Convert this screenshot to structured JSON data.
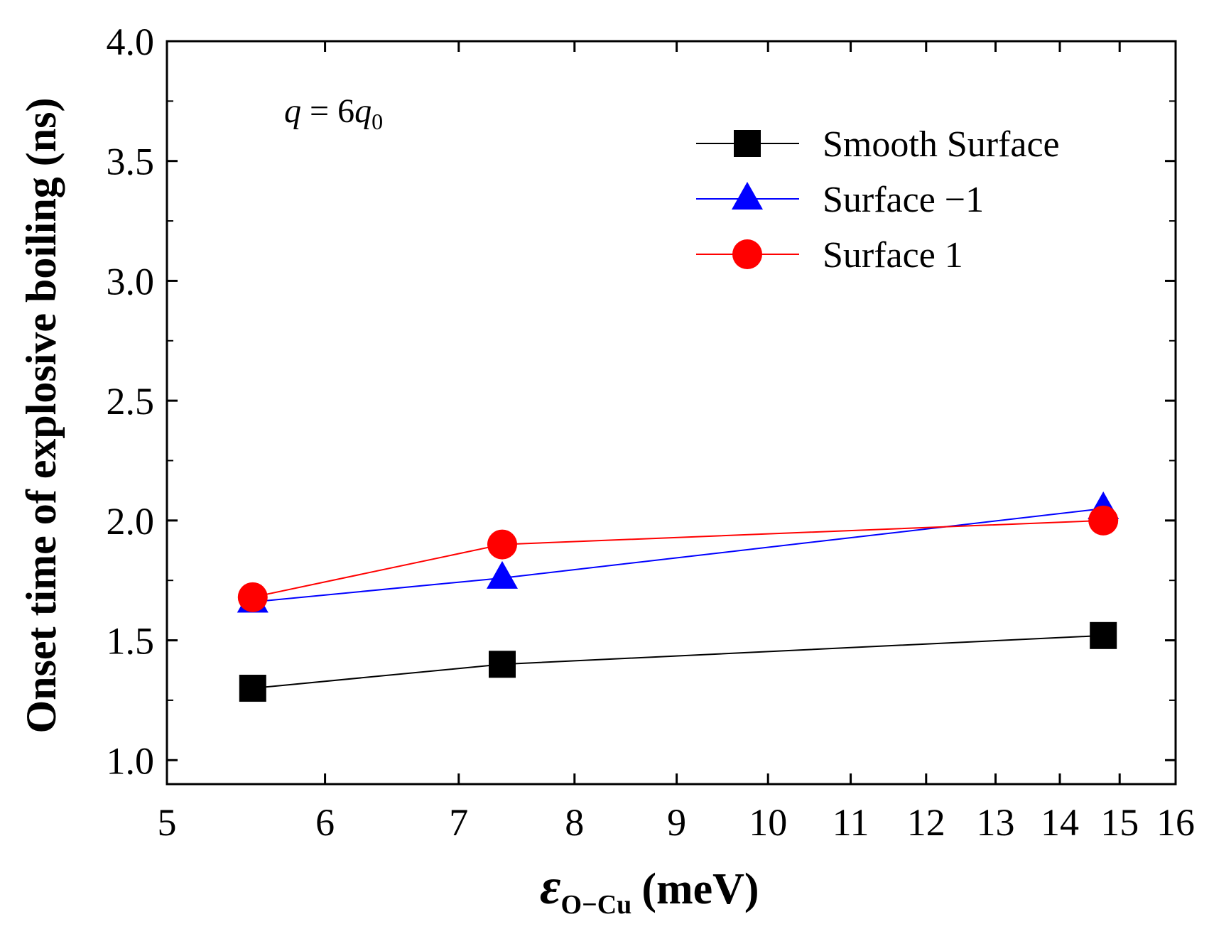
{
  "chart_data": {
    "type": "line",
    "title": "",
    "xlabel_symbol": "ε",
    "xlabel_subscript": "O−Cu",
    "xlabel_unit": "(meV)",
    "ylabel": "Onset time of explosive boiling (ns)",
    "annotation": {
      "lhs": "q",
      "eq": " = 6",
      "rhs": "q",
      "sub": "0"
    },
    "xlim": [
      5,
      16
    ],
    "ylim": [
      0.9,
      4.0
    ],
    "xscale": "log",
    "xticks": [
      5,
      6,
      7,
      8,
      9,
      10,
      11,
      12,
      13,
      14,
      15,
      16
    ],
    "xtick_labels": [
      "5",
      "6",
      "7",
      "8",
      "9",
      "10",
      "11",
      "12",
      "13",
      "14",
      "15",
      "16"
    ],
    "yticks": [
      1.0,
      1.5,
      2.0,
      2.5,
      3.0,
      3.5,
      4.0
    ],
    "ytick_labels": [
      "1.0",
      "1.5",
      "2.0",
      "2.5",
      "3.0",
      "3.5",
      "4.0"
    ],
    "legend_position": "top-right",
    "series": [
      {
        "name": "Smooth Surface",
        "color": "#000000",
        "marker": "square",
        "x": [
          5.52,
          7.36,
          14.72
        ],
        "y": [
          1.3,
          1.4,
          1.52
        ]
      },
      {
        "name": "Surface −1",
        "color": "#0000ff",
        "marker": "triangle",
        "x": [
          5.52,
          7.36,
          14.72
        ],
        "y": [
          1.66,
          1.76,
          2.05
        ]
      },
      {
        "name": "Surface 1",
        "color": "#ff0000",
        "marker": "circle",
        "x": [
          5.52,
          7.36,
          14.72
        ],
        "y": [
          1.68,
          1.9,
          2.0
        ]
      }
    ]
  }
}
